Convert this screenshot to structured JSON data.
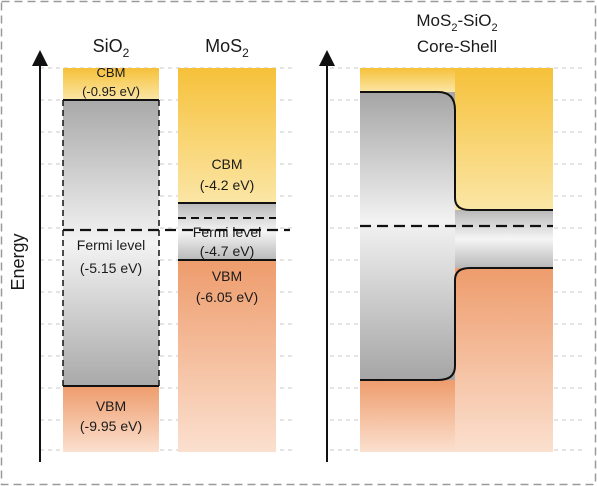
{
  "axis": {
    "label": "Energy"
  },
  "columns": {
    "sio2": {
      "title_main": "SiO",
      "title_sub": "2",
      "cbm_label": "CBM",
      "cbm_value": "(-0.95 eV)",
      "fermi_label": "Fermi level",
      "fermi_value": "(-5.15 eV)",
      "vbm_label": "VBM",
      "vbm_value": "(-9.95 eV)"
    },
    "mos2": {
      "title_main": "MoS",
      "title_sub": "2",
      "cbm_label": "CBM",
      "cbm_value": "(-4.2 eV)",
      "fermi_label": "Fermi level",
      "fermi_value": "(-4.7 eV)",
      "vbm_label": "VBM",
      "vbm_value": "(-6.05 eV)"
    },
    "core_shell": {
      "title_part1": "MoS",
      "title_sub1": "2",
      "title_part2": "-SiO",
      "title_sub2": "2",
      "title_line2": "Core-Shell"
    }
  },
  "colors": {
    "conduction": "#f7c84a",
    "valence": "#ef9f73",
    "gap": "#cfcfcf",
    "line": "#111111",
    "border": "#9a9a9a"
  }
}
